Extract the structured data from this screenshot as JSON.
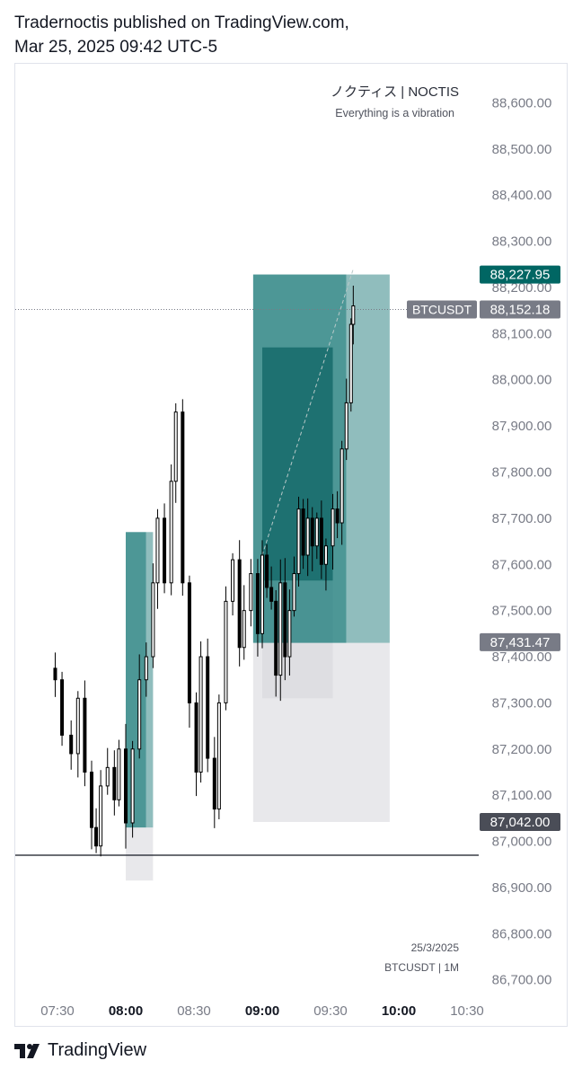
{
  "header": {
    "line1": "Tradernoctis published on TradingView.com,",
    "line2": "Mar 25, 2025 09:42 UTC-5"
  },
  "footer": {
    "brand": "TradingView",
    "logo_icon": "tradingview-logo-icon"
  },
  "watermark": {
    "title": "ノクティス | NOCTIS",
    "subtitle": "Everything is a vibration",
    "date": "25/3/2025",
    "symbol_tf": "BTCUSDT | 1M"
  },
  "colors": {
    "candle": "#000000",
    "profit_dark": "#26807f",
    "profit_light": "#7cb2b1",
    "profit_deep": "#0d6363",
    "loss": "#d5d6da",
    "label_teal": "#006663",
    "label_gray": "#787b86",
    "axis_text": "#787b86"
  },
  "chart_data": {
    "type": "candlestick",
    "symbol": "BTCUSDT",
    "timeframe": "1M",
    "x_ticks": [
      {
        "time": "07:30",
        "bold": false
      },
      {
        "time": "08:00",
        "bold": true
      },
      {
        "time": "08:30",
        "bold": false
      },
      {
        "time": "09:00",
        "bold": true
      },
      {
        "time": "09:30",
        "bold": false
      },
      {
        "time": "10:00",
        "bold": true
      },
      {
        "time": "10:30",
        "bold": false
      }
    ],
    "y_ticks": [
      "86,700.00",
      "86,800.00",
      "86,900.00",
      "87,000.00",
      "87,100.00",
      "87,200.00",
      "87,300.00",
      "87,400.00",
      "87,500.00",
      "87,600.00",
      "87,700.00",
      "87,800.00",
      "87,900.00",
      "88,000.00",
      "88,100.00",
      "88,200.00",
      "88,300.00",
      "88,400.00",
      "88,500.00",
      "88,600.00"
    ],
    "ylim": [
      86680,
      88665
    ],
    "price_labels": [
      {
        "text": "88,227.95",
        "value": 88227.95,
        "style": "teal"
      },
      {
        "text": "88,152.18",
        "value": 88152.18,
        "style": "gray",
        "tag": "BTCUSDT"
      },
      {
        "text": "87,431.47",
        "value": 87431.47,
        "style": "gray"
      },
      {
        "text": "87,042.00",
        "value": 87042.0,
        "style": "dark"
      }
    ],
    "current_price": 88152.18,
    "support_line": 86970,
    "positions": [
      {
        "t_start": "08:00",
        "t_end": "08:12",
        "t_entry_end": "08:09",
        "entry": 87030,
        "target": 87670,
        "stop": 86915
      },
      {
        "t_start": "08:56",
        "t_end": "09:56",
        "t_entry_end": "09:37",
        "entry": 87430,
        "target": 88228,
        "stop": 87042
      },
      {
        "t_start": "09:00",
        "t_end": "09:31",
        "t_entry_end": "09:31",
        "entry": 87565,
        "target": 88070,
        "stop": 87310
      }
    ],
    "trend_line": {
      "t1": "09:00",
      "p1": 87620,
      "t2": "09:40",
      "p2": 88240
    },
    "series": [
      {
        "time": "07:29",
        "value": 87350
      },
      {
        "time": "07:32",
        "value": 87230
      },
      {
        "time": "07:36",
        "value": 87190
      },
      {
        "time": "07:39",
        "value": 87310
      },
      {
        "time": "07:42",
        "value": 87150
      },
      {
        "time": "07:45",
        "value": 87030
      },
      {
        "time": "07:47",
        "value": 86990
      },
      {
        "time": "07:49",
        "value": 87120
      },
      {
        "time": "07:52",
        "value": 87160
      },
      {
        "time": "07:55",
        "value": 87090
      },
      {
        "time": "07:57",
        "value": 87200
      },
      {
        "time": "08:00",
        "value": 87040
      },
      {
        "time": "08:03",
        "value": 87200
      },
      {
        "time": "08:06",
        "value": 87350
      },
      {
        "time": "08:09",
        "value": 87400
      },
      {
        "time": "08:12",
        "value": 87560
      },
      {
        "time": "08:14",
        "value": 87700
      },
      {
        "time": "08:17",
        "value": 87560
      },
      {
        "time": "08:20",
        "value": 87780
      },
      {
        "time": "08:22",
        "value": 87930
      },
      {
        "time": "08:25",
        "value": 87560
      },
      {
        "time": "08:28",
        "value": 87300
      },
      {
        "time": "08:31",
        "value": 87150
      },
      {
        "time": "08:33",
        "value": 87400
      },
      {
        "time": "08:36",
        "value": 87180
      },
      {
        "time": "08:39",
        "value": 87070
      },
      {
        "time": "08:41",
        "value": 87300
      },
      {
        "time": "08:44",
        "value": 87520
      },
      {
        "time": "08:47",
        "value": 87610
      },
      {
        "time": "08:50",
        "value": 87420
      },
      {
        "time": "08:52",
        "value": 87500
      },
      {
        "time": "08:55",
        "value": 87580
      },
      {
        "time": "08:58",
        "value": 87450
      },
      {
        "time": "09:00",
        "value": 87620
      },
      {
        "time": "09:02",
        "value": 87550
      },
      {
        "time": "09:04",
        "value": 87520
      },
      {
        "time": "09:06",
        "value": 87360
      },
      {
        "time": "09:08",
        "value": 87560
      },
      {
        "time": "09:10",
        "value": 87400
      },
      {
        "time": "09:12",
        "value": 87500
      },
      {
        "time": "09:14",
        "value": 87580
      },
      {
        "time": "09:16",
        "value": 87720
      },
      {
        "time": "09:18",
        "value": 87620
      },
      {
        "time": "09:20",
        "value": 87700
      },
      {
        "time": "09:22",
        "value": 87640
      },
      {
        "time": "09:24",
        "value": 87700
      },
      {
        "time": "09:26",
        "value": 87600
      },
      {
        "time": "09:28",
        "value": 87640
      },
      {
        "time": "09:31",
        "value": 87720
      },
      {
        "time": "09:33",
        "value": 87690
      },
      {
        "time": "09:35",
        "value": 87850
      },
      {
        "time": "09:37",
        "value": 87950
      },
      {
        "time": "09:39",
        "value": 88120
      },
      {
        "time": "09:40",
        "value": 88160
      }
    ]
  }
}
